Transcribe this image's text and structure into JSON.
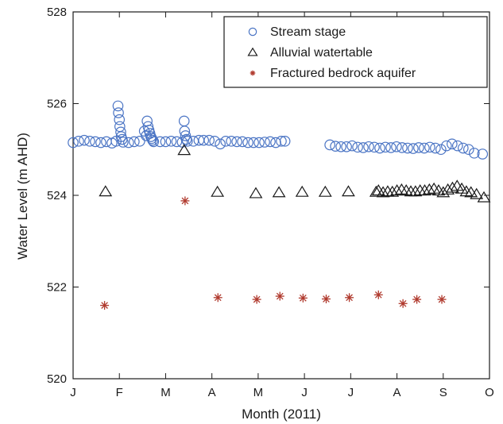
{
  "chart_data": {
    "type": "scatter",
    "xlabel": "Month (2011)",
    "ylabel": "Water Level (m AHD)",
    "xlim": [
      1,
      10
    ],
    "ylim": [
      520,
      528
    ],
    "x_ticks": [
      {
        "value": 1,
        "label": "J"
      },
      {
        "value": 2,
        "label": "F"
      },
      {
        "value": 3,
        "label": "M"
      },
      {
        "value": 4,
        "label": "A"
      },
      {
        "value": 5,
        "label": "M"
      },
      {
        "value": 6,
        "label": "J"
      },
      {
        "value": 7,
        "label": "J"
      },
      {
        "value": 8,
        "label": "A"
      },
      {
        "value": 9,
        "label": "S"
      },
      {
        "value": 10,
        "label": "O"
      }
    ],
    "y_ticks": [
      520,
      522,
      524,
      526,
      528
    ],
    "legend_position": "top-right",
    "series": [
      {
        "name": "Stream stage",
        "marker": "circle",
        "color": "#4a74c4",
        "points": [
          [
            1.0,
            525.15
          ],
          [
            1.12,
            525.18
          ],
          [
            1.24,
            525.2
          ],
          [
            1.36,
            525.18
          ],
          [
            1.48,
            525.17
          ],
          [
            1.6,
            525.15
          ],
          [
            1.72,
            525.17
          ],
          [
            1.84,
            525.14
          ],
          [
            1.93,
            525.18
          ],
          [
            1.97,
            525.95
          ],
          [
            1.98,
            525.8
          ],
          [
            2.0,
            525.65
          ],
          [
            2.01,
            525.5
          ],
          [
            2.03,
            525.38
          ],
          [
            2.04,
            525.28
          ],
          [
            2.06,
            525.22
          ],
          [
            2.08,
            525.16
          ],
          [
            2.2,
            525.15
          ],
          [
            2.32,
            525.17
          ],
          [
            2.44,
            525.18
          ],
          [
            2.54,
            525.4
          ],
          [
            2.58,
            525.3
          ],
          [
            2.6,
            525.62
          ],
          [
            2.62,
            525.5
          ],
          [
            2.64,
            525.42
          ],
          [
            2.66,
            525.35
          ],
          [
            2.68,
            525.28
          ],
          [
            2.7,
            525.24
          ],
          [
            2.72,
            525.2
          ],
          [
            2.74,
            525.17
          ],
          [
            2.88,
            525.17
          ],
          [
            3.0,
            525.17
          ],
          [
            3.12,
            525.18
          ],
          [
            3.24,
            525.17
          ],
          [
            3.36,
            525.16
          ],
          [
            3.4,
            525.62
          ],
          [
            3.41,
            525.4
          ],
          [
            3.43,
            525.3
          ],
          [
            3.45,
            525.22
          ],
          [
            3.47,
            525.18
          ],
          [
            3.6,
            525.18
          ],
          [
            3.72,
            525.2
          ],
          [
            3.82,
            525.2
          ],
          [
            3.94,
            525.2
          ],
          [
            4.06,
            525.18
          ],
          [
            4.18,
            525.12
          ],
          [
            4.3,
            525.18
          ],
          [
            4.42,
            525.18
          ],
          [
            4.54,
            525.17
          ],
          [
            4.66,
            525.17
          ],
          [
            4.78,
            525.15
          ],
          [
            4.9,
            525.15
          ],
          [
            5.02,
            525.15
          ],
          [
            5.14,
            525.16
          ],
          [
            5.26,
            525.17
          ],
          [
            5.38,
            525.15
          ],
          [
            5.5,
            525.18
          ],
          [
            5.58,
            525.18
          ],
          [
            6.55,
            525.1
          ],
          [
            6.67,
            525.07
          ],
          [
            6.79,
            525.06
          ],
          [
            6.91,
            525.06
          ],
          [
            7.03,
            525.08
          ],
          [
            7.15,
            525.05
          ],
          [
            7.27,
            525.04
          ],
          [
            7.39,
            525.06
          ],
          [
            7.51,
            525.05
          ],
          [
            7.63,
            525.03
          ],
          [
            7.75,
            525.05
          ],
          [
            7.87,
            525.04
          ],
          [
            7.99,
            525.06
          ],
          [
            8.11,
            525.04
          ],
          [
            8.23,
            525.03
          ],
          [
            8.35,
            525.02
          ],
          [
            8.47,
            525.04
          ],
          [
            8.59,
            525.03
          ],
          [
            8.71,
            525.05
          ],
          [
            8.83,
            525.03
          ],
          [
            8.95,
            525.0
          ],
          [
            9.07,
            525.08
          ],
          [
            9.19,
            525.12
          ],
          [
            9.31,
            525.08
          ],
          [
            9.43,
            525.03
          ],
          [
            9.55,
            525.0
          ],
          [
            9.67,
            524.92
          ],
          [
            9.85,
            524.9
          ]
        ]
      },
      {
        "name": "Alluvial watertable",
        "marker": "triangle",
        "color": "#1a1a1a",
        "points": [
          [
            1.7,
            524.08
          ],
          [
            3.4,
            524.98
          ],
          [
            4.12,
            524.07
          ],
          [
            4.95,
            524.04
          ],
          [
            5.45,
            524.06
          ],
          [
            5.95,
            524.07
          ],
          [
            6.45,
            524.07
          ],
          [
            6.95,
            524.08
          ],
          [
            7.55,
            524.07
          ],
          [
            7.6,
            524.1
          ],
          [
            7.7,
            524.06
          ],
          [
            7.8,
            524.08
          ],
          [
            7.9,
            524.07
          ],
          [
            8.0,
            524.1
          ],
          [
            8.1,
            524.12
          ],
          [
            8.2,
            524.1
          ],
          [
            8.3,
            524.08
          ],
          [
            8.4,
            524.08
          ],
          [
            8.5,
            524.1
          ],
          [
            8.6,
            524.1
          ],
          [
            8.7,
            524.12
          ],
          [
            8.8,
            524.14
          ],
          [
            8.9,
            524.1
          ],
          [
            9.0,
            524.06
          ],
          [
            9.1,
            524.12
          ],
          [
            9.2,
            524.16
          ],
          [
            9.3,
            524.2
          ],
          [
            9.4,
            524.14
          ],
          [
            9.5,
            524.08
          ],
          [
            9.6,
            524.06
          ],
          [
            9.72,
            524.02
          ],
          [
            9.88,
            523.95
          ]
        ]
      },
      {
        "name": "Fractured bedrock aquifer",
        "marker": "asterisk",
        "color": "#b03a2e",
        "points": [
          [
            1.68,
            521.6
          ],
          [
            3.42,
            523.88
          ],
          [
            4.13,
            521.77
          ],
          [
            4.97,
            521.73
          ],
          [
            5.47,
            521.8
          ],
          [
            5.97,
            521.76
          ],
          [
            6.47,
            521.74
          ],
          [
            6.97,
            521.77
          ],
          [
            7.6,
            521.83
          ],
          [
            8.13,
            521.64
          ],
          [
            8.43,
            521.73
          ],
          [
            8.97,
            521.73
          ]
        ]
      }
    ]
  }
}
